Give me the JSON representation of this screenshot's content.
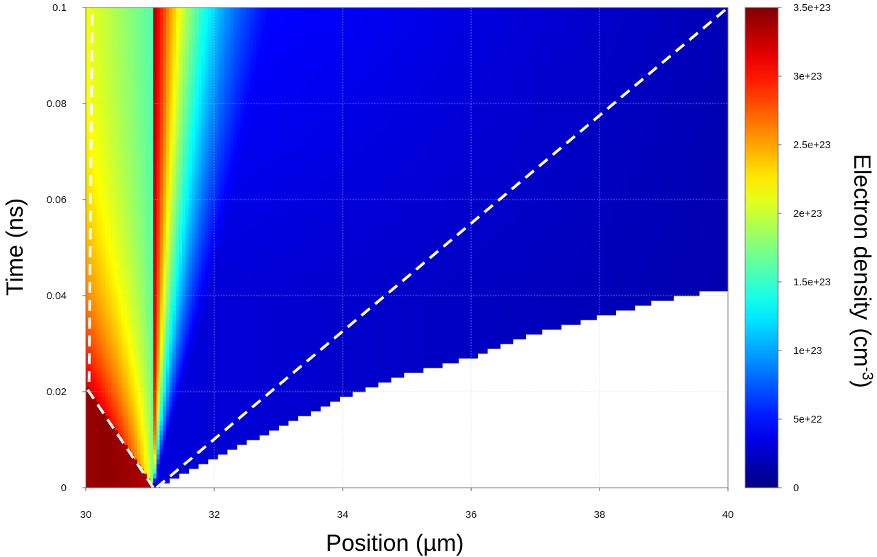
{
  "chart_data": {
    "type": "heatmap",
    "xlabel": "Position (µm)",
    "ylabel": "Time (ns)",
    "colorbar_label_main": "Electron density",
    "colorbar_label_unit": "(cm",
    "colorbar_label_exp": "-3",
    "colorbar_label_close": ")",
    "xlim": [
      30,
      40
    ],
    "ylim": [
      0,
      0.1
    ],
    "x_ticks": [
      {
        "value": 30,
        "label": "30"
      },
      {
        "value": 32,
        "label": "32"
      },
      {
        "value": 34,
        "label": "34"
      },
      {
        "value": 36,
        "label": "36"
      },
      {
        "value": 38,
        "label": "38"
      },
      {
        "value": 40,
        "label": "40"
      }
    ],
    "y_ticks": [
      {
        "value": 0,
        "label": "0"
      },
      {
        "value": 0.02,
        "label": "0.02"
      },
      {
        "value": 0.04,
        "label": "0.04"
      },
      {
        "value": 0.06,
        "label": "0.06"
      },
      {
        "value": 0.08,
        "label": "0.08"
      },
      {
        "value": 0.1,
        "label": "0.1"
      }
    ],
    "colorbar": {
      "range": [
        0,
        3.5e+23
      ],
      "ticks": [
        {
          "value": 0,
          "label": "0"
        },
        {
          "value": 5e+22,
          "label": "5e+22"
        },
        {
          "value": 1e+23,
          "label": "1e+23"
        },
        {
          "value": 1.5e+23,
          "label": "1.5e+23"
        },
        {
          "value": 2e+23,
          "label": "2e+23"
        },
        {
          "value": 2.5e+23,
          "label": "2.5e+23"
        },
        {
          "value": 3e+23,
          "label": "3e+23"
        },
        {
          "value": 3.5e+23,
          "label": "3.5e+23"
        }
      ],
      "colormap": "jet"
    },
    "grid": true,
    "origin_x": 31.05,
    "front_boundary": [
      [
        31.05,
        0
      ],
      [
        32,
        0.0063
      ],
      [
        33,
        0.0125
      ],
      [
        34,
        0.0188
      ],
      [
        35,
        0.0237
      ],
      [
        36,
        0.0271
      ],
      [
        37,
        0.0322
      ],
      [
        38,
        0.0356
      ],
      [
        39,
        0.0392
      ],
      [
        40,
        0.0415
      ]
    ],
    "overlay_lines": [
      {
        "style": "dashed",
        "color": "#ffffff",
        "points": [
          [
            31.1,
            0
          ],
          [
            40,
            0.1
          ]
        ]
      },
      {
        "style": "dashed",
        "color": "#ffffff",
        "points": [
          [
            31.05,
            0
          ],
          [
            30,
            0.021
          ]
        ]
      },
      {
        "style": "dashed",
        "color": "#ffffff",
        "points": [
          [
            30.05,
            0.022
          ],
          [
            30.1,
            0.1
          ]
        ]
      }
    ]
  }
}
